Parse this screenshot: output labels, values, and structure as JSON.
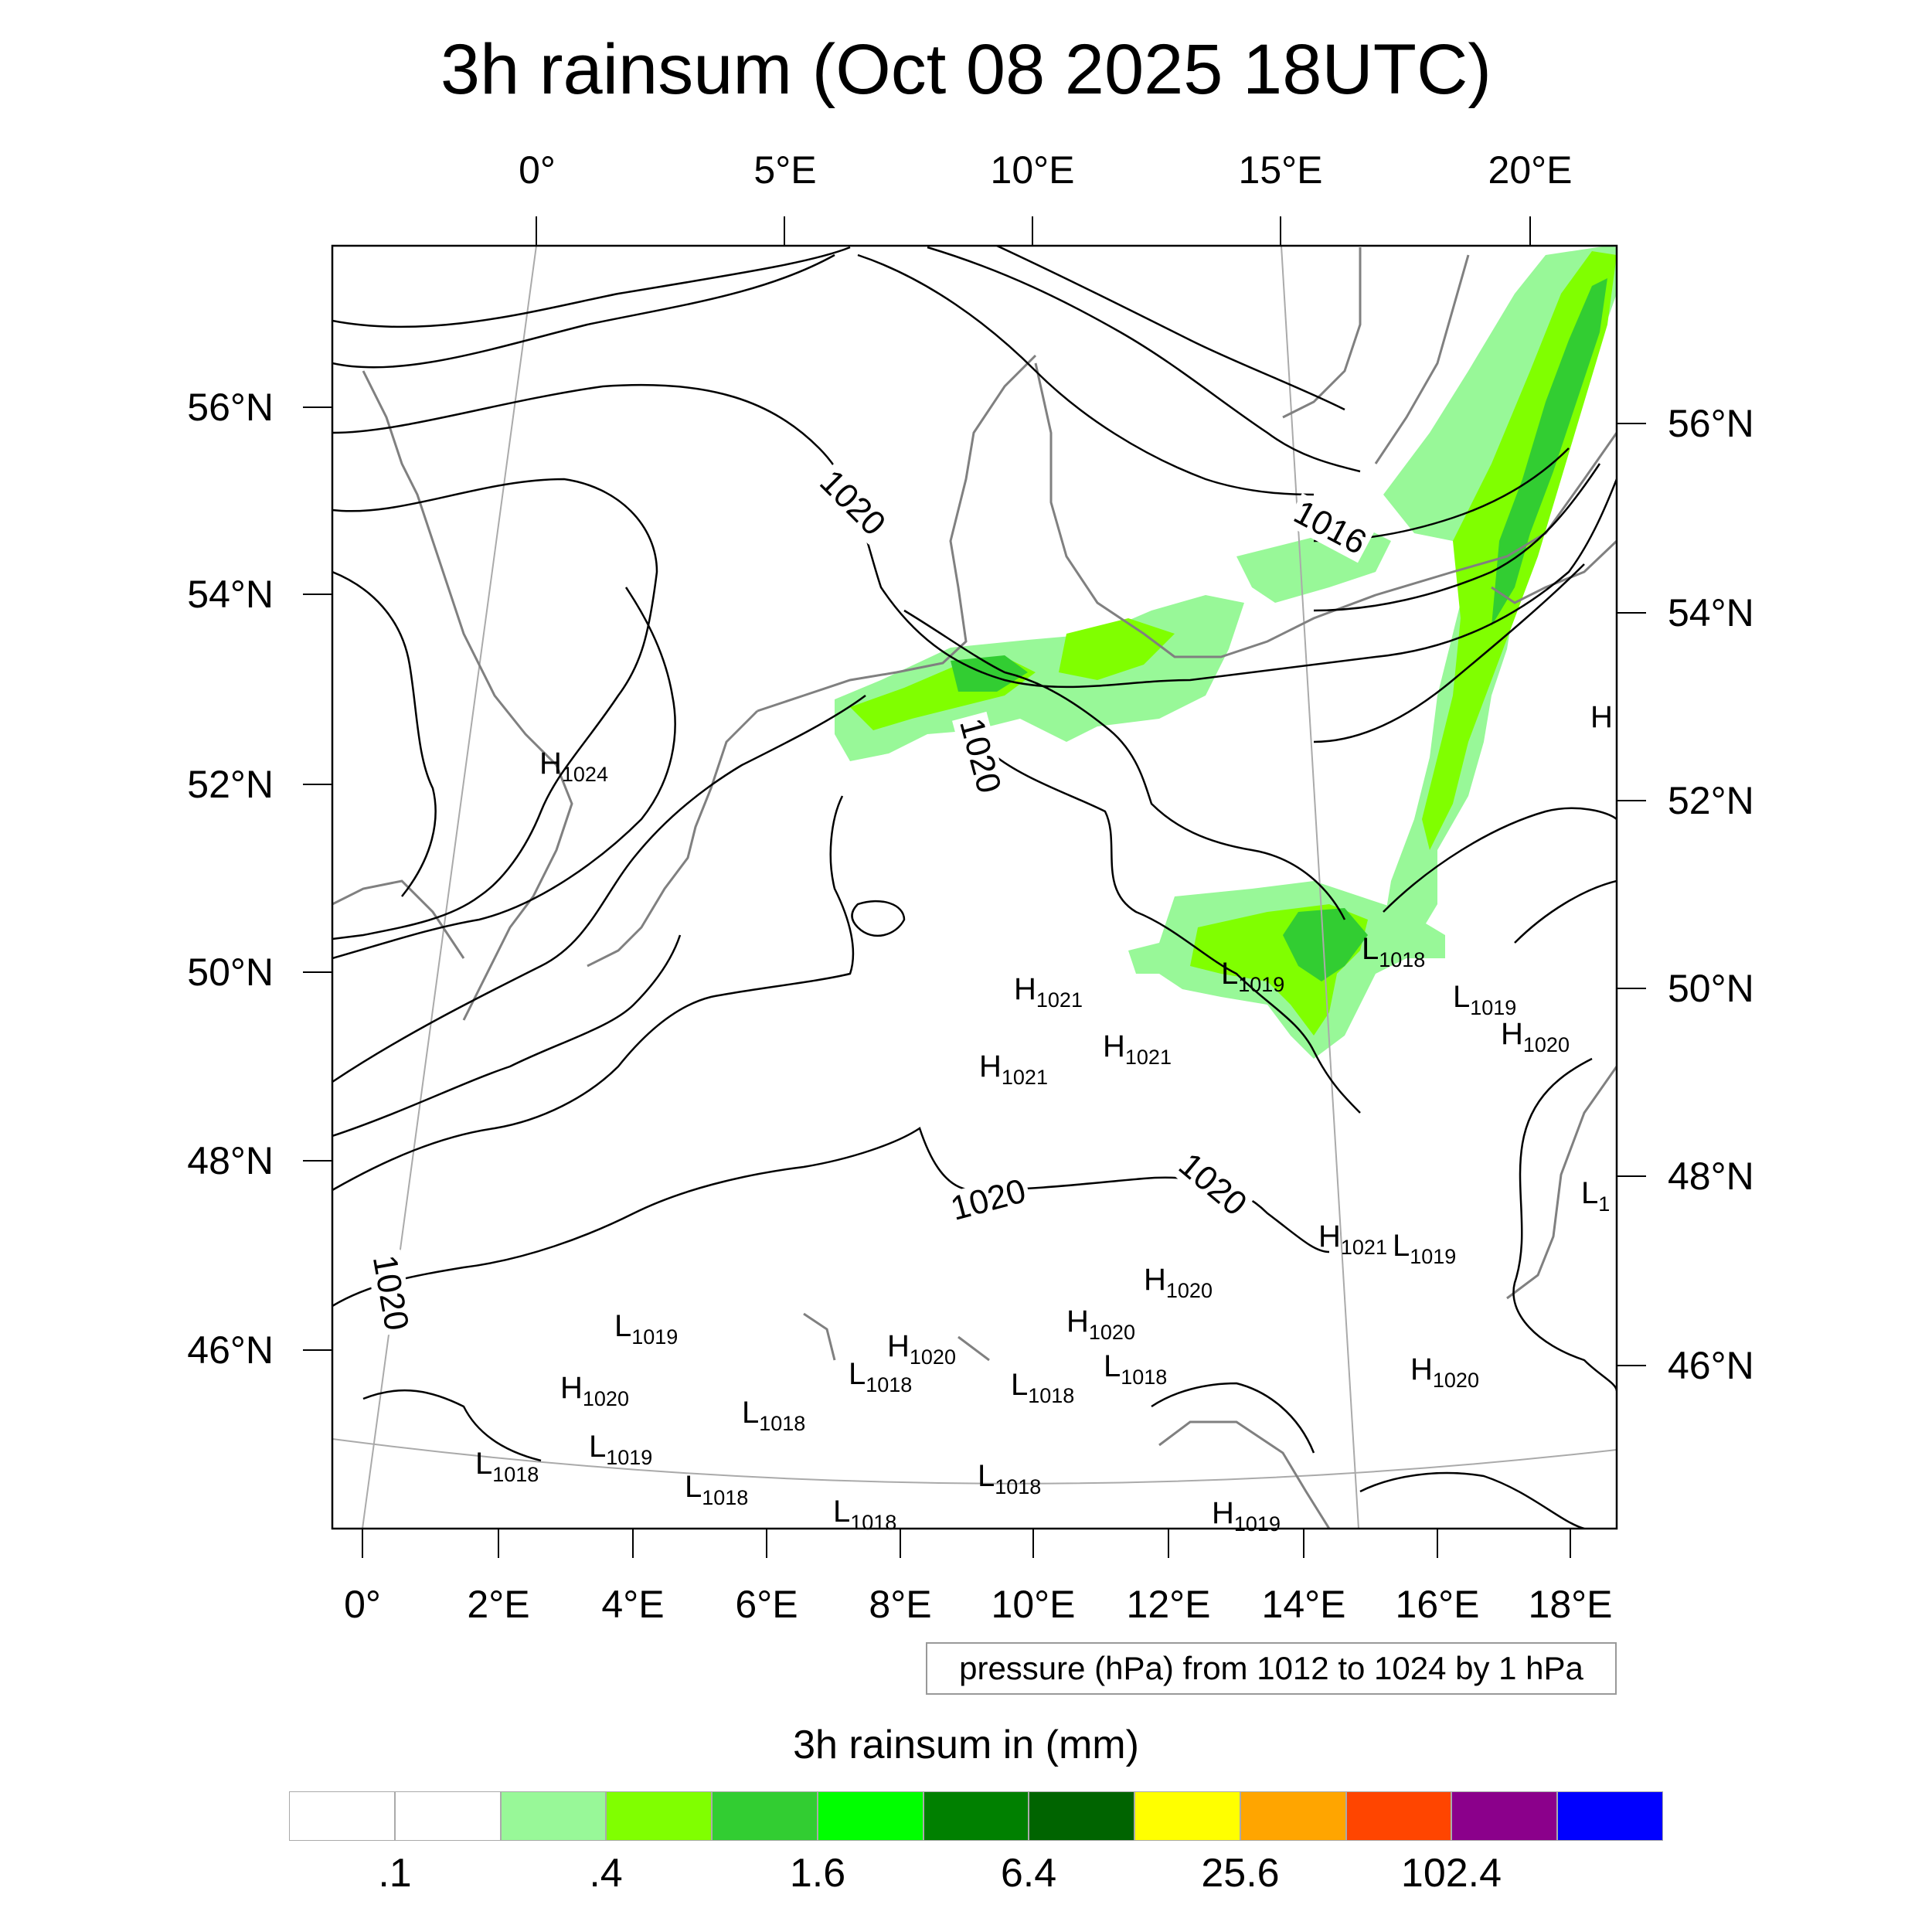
{
  "title": "3h rainsum (Oct 08 2025 18UTC)",
  "axes": {
    "top_ticks": [
      "0°",
      "5°E",
      "10°E",
      "15°E",
      "20°E"
    ],
    "bottom_ticks": [
      "0°",
      "2°E",
      "4°E",
      "6°E",
      "8°E",
      "10°E",
      "12°E",
      "14°E",
      "16°E",
      "18°E"
    ],
    "left_ticks": [
      "56°N",
      "54°N",
      "52°N",
      "50°N",
      "48°N",
      "46°N"
    ],
    "right_ticks": [
      "56°N",
      "54°N",
      "52°N",
      "50°N",
      "48°N",
      "46°N"
    ]
  },
  "contour_info": "pressure (hPa) from 1012 to 1024 by 1 hPa",
  "isobar_labels": [
    "1020",
    "1016",
    "1020",
    "1020",
    "1020",
    "1020"
  ],
  "pressure_centers": [
    {
      "letter": "H",
      "value": "1024"
    },
    {
      "letter": "H",
      "value": "1021"
    },
    {
      "letter": "H",
      "value": "1021"
    },
    {
      "letter": "H",
      "value": "1021"
    },
    {
      "letter": "L",
      "value": "1019"
    },
    {
      "letter": "L",
      "value": "1018"
    },
    {
      "letter": "L",
      "value": "1019"
    },
    {
      "letter": "H",
      "value": "1020"
    },
    {
      "letter": "H",
      "value": "1021"
    },
    {
      "letter": "L",
      "value": "1019"
    },
    {
      "letter": "H",
      "value": "1020"
    },
    {
      "letter": "H",
      "value": "1020"
    },
    {
      "letter": "L",
      "value": "1019"
    },
    {
      "letter": "H",
      "value": "1020"
    },
    {
      "letter": "H",
      "value": "1020"
    },
    {
      "letter": "L",
      "value": "1018"
    },
    {
      "letter": "L",
      "value": "1018"
    },
    {
      "letter": "L",
      "value": "1018"
    },
    {
      "letter": "L",
      "value": "1018"
    },
    {
      "letter": "H",
      "value": "1020"
    },
    {
      "letter": "L",
      "value": "1019"
    },
    {
      "letter": "L",
      "value": "1018"
    },
    {
      "letter": "L",
      "value": "1018"
    },
    {
      "letter": "L",
      "value": "1018"
    },
    {
      "letter": "L",
      "value": "1018"
    },
    {
      "letter": "H",
      "value": "1019"
    },
    {
      "letter": "H",
      "value": ""
    },
    {
      "letter": "L",
      "value": "1"
    }
  ],
  "colorbar": {
    "title": "3h rainsum in (mm)",
    "colors": [
      "#ffffff",
      "#ffffff",
      "#98f898",
      "#80ff00",
      "#32cd32",
      "#00ff00",
      "#008000",
      "#006400",
      "#ffff00",
      "#ffa500",
      "#ff4500",
      "#8b008b",
      "#0000ff"
    ],
    "labels": [
      ".1",
      ".4",
      "1.6",
      "6.4",
      "25.6",
      "102.4"
    ]
  },
  "colors": {
    "coastline": "#808080",
    "isobar": "#000000",
    "graticule": "#aaaaaa"
  }
}
